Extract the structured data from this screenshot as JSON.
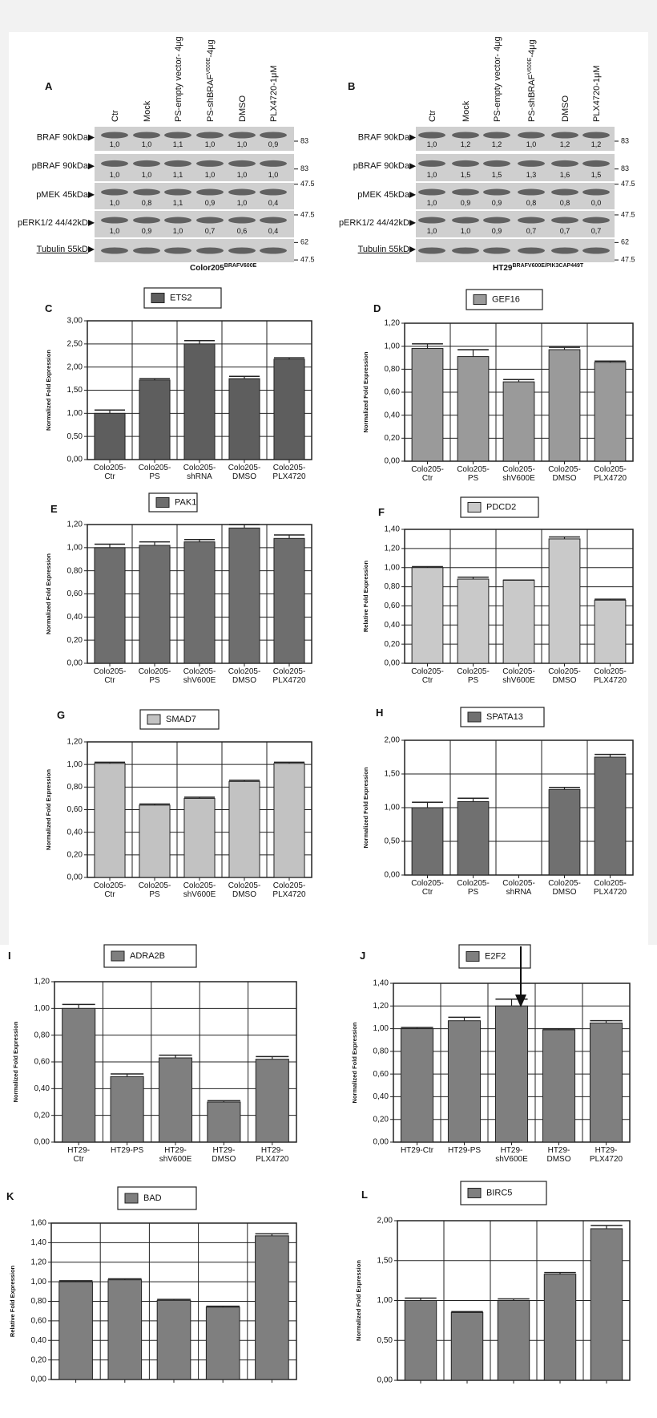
{
  "blots": [
    {
      "panel": "A",
      "lanes": [
        "Ctr",
        "Mock",
        "PS-empty vector- 4μg",
        {
          "text": "PS-shBRAF",
          "sup": "V600E",
          "tail": "-4μg"
        },
        "DMSO",
        "PLX4720-1μM"
      ],
      "rows": [
        {
          "label": "BRAF 90kDa",
          "values": [
            "1,0",
            "1,0",
            "1,1",
            "1,0",
            "1,0",
            "0,9"
          ],
          "markers": [
            "83"
          ]
        },
        {
          "label": "pBRAF 90kDa",
          "values": [
            "1,0",
            "1,0",
            "1,1",
            "1,0",
            "1,0",
            "1,0"
          ],
          "markers": [
            "83"
          ]
        },
        {
          "label": "pMEK 45kDa",
          "values": [
            "1,0",
            "0,8",
            "1,1",
            "0,9",
            "1,0",
            "0,4"
          ],
          "markers": [
            "47.5"
          ]
        },
        {
          "label": "pERK1/2 44/42kD",
          "values": [
            "1,0",
            "0,9",
            "1,0",
            "0,7",
            "0,6",
            "0,4"
          ],
          "markers": [
            "47.5"
          ]
        },
        {
          "label": "Tubulin 55kD",
          "values": [],
          "markers": [
            "62",
            "47.5"
          ]
        }
      ],
      "caption": "Color205",
      "caption_sup": "BRAFV600E"
    },
    {
      "panel": "B",
      "lanes": [
        "Ctr",
        "Mock",
        "PS-empty vector- 4μg",
        {
          "text": "PS-shBRAF",
          "sup": "V600E",
          "tail": "-4μg"
        },
        "DMSO",
        "PLX4720-1μM"
      ],
      "rows": [
        {
          "label": "BRAF 90kDa",
          "values": [
            "1,0",
            "1,2",
            "1,2",
            "1,0",
            "1,2",
            "1,2"
          ],
          "markers": [
            "83"
          ]
        },
        {
          "label": "pBRAF 90kDa",
          "values": [
            "1,0",
            "1,5",
            "1,5",
            "1,3",
            "1,6",
            "1,5"
          ],
          "markers": [
            "83"
          ]
        },
        {
          "label": "pMEK 45kDa",
          "values": [
            "1,0",
            "0,9",
            "0,9",
            "0,8",
            "0,8",
            "0,0"
          ],
          "markers": [
            "47.5"
          ]
        },
        {
          "label": "pERK1/2 44/42kD",
          "values": [
            "1,0",
            "1,0",
            "0,9",
            "0,7",
            "0,7",
            "0,7"
          ],
          "markers": [
            "47.5"
          ]
        },
        {
          "label": "Tubulin 55kD",
          "values": [],
          "markers": [
            "62",
            "47.5"
          ]
        }
      ],
      "caption": "HT29",
      "caption_sup": "BRAFV600E/PIK3CAP449T"
    }
  ],
  "chart_data": [
    {
      "type": "bar",
      "panel": "C",
      "ylabel": "Normalized Fold Expression",
      "categories": [
        "Colo205-\nCtr",
        "Colo205-\nPS",
        "Colo205-\nshRNA",
        "Colo205-\nDMSO",
        "Colo205-\nPLX4720"
      ],
      "ylim": [
        0,
        3
      ],
      "yticks": [
        {
          "value": 0,
          "label": "0,00"
        },
        {
          "value": 0.5,
          "label": "0,50"
        },
        {
          "value": 1,
          "label": "1,00"
        },
        {
          "value": 1.5,
          "label": "1,50"
        },
        {
          "value": 2,
          "label": "2,00"
        },
        {
          "value": 2.5,
          "label": "2,50"
        },
        {
          "value": 3,
          "label": "3,00"
        }
      ],
      "grid": true,
      "series": [
        {
          "name": "ETS2",
          "color": "#5e5e5e",
          "values": [
            1.0,
            1.72,
            2.5,
            1.75,
            2.17
          ],
          "errors": [
            0.07,
            0.03,
            0.07,
            0.05,
            0.03
          ]
        }
      ]
    },
    {
      "type": "bar",
      "panel": "D",
      "ylabel": "Normalized Fold Expression",
      "categories": [
        "Colo205-\nCtr",
        "Colo205-\nPS",
        "Colo205-\nshV600E",
        "Colo205-\nDMSO",
        "Colo205-\nPLX4720"
      ],
      "ylim": [
        0,
        1.2
      ],
      "yticks": [
        {
          "value": 0,
          "label": "0,00"
        },
        {
          "value": 0.2,
          "label": "0,20"
        },
        {
          "value": 0.4,
          "label": "0,40"
        },
        {
          "value": 0.6,
          "label": "0,60"
        },
        {
          "value": 0.8,
          "label": "0,80"
        },
        {
          "value": 1,
          "label": "1,00"
        },
        {
          "value": 1.2,
          "label": "1,20"
        }
      ],
      "grid": true,
      "series": [
        {
          "name": "GEF16",
          "color": "#9a9a9a",
          "values": [
            0.98,
            0.91,
            0.69,
            0.97,
            0.86
          ],
          "errors": [
            0.04,
            0.06,
            0.02,
            0.02,
            0.01
          ]
        }
      ]
    },
    {
      "type": "bar",
      "panel": "E",
      "ylabel": "Normalized Fold Expression",
      "categories": [
        "Colo205-\nCtr",
        "Colo205-\nPS",
        "Colo205-\nshV600E",
        "Colo205-\nDMSO",
        "Colo205-\nPLX4720"
      ],
      "ylim": [
        0,
        1.2
      ],
      "yticks": [
        {
          "value": 0,
          "label": "0,00"
        },
        {
          "value": 0.2,
          "label": "0,20"
        },
        {
          "value": 0.4,
          "label": "0,40"
        },
        {
          "value": 0.6,
          "label": "0,60"
        },
        {
          "value": 0.8,
          "label": "0,80"
        },
        {
          "value": 1,
          "label": "1,00"
        },
        {
          "value": 1.2,
          "label": "1,20"
        }
      ],
      "grid": true,
      "series": [
        {
          "name": "PAK1",
          "color": "#6e6e6e",
          "values": [
            1.0,
            1.02,
            1.05,
            1.17,
            1.08
          ],
          "errors": [
            0.03,
            0.03,
            0.02,
            0.03,
            0.03
          ]
        }
      ]
    },
    {
      "type": "bar",
      "panel": "F",
      "ylabel": "Relative Fold Expression",
      "categories": [
        "Colo205-\nCtr",
        "Colo205-\nPS",
        "Colo205-\nshV600E",
        "Colo205-\nDMSO",
        "Colo205-\nPLX4720"
      ],
      "ylim": [
        0,
        1.4
      ],
      "yticks": [
        {
          "value": 0,
          "label": "0,00"
        },
        {
          "value": 0.2,
          "label": "0,20"
        },
        {
          "value": 0.4,
          "label": "0,40"
        },
        {
          "value": 0.6,
          "label": "0,60"
        },
        {
          "value": 0.8,
          "label": "0,80"
        },
        {
          "value": 1,
          "label": "1,00"
        },
        {
          "value": 1.2,
          "label": "1,20"
        },
        {
          "value": 1.4,
          "label": "1,40"
        }
      ],
      "grid": true,
      "series": [
        {
          "name": "PDCD2",
          "color": "#c9c9c9",
          "values": [
            1.0,
            0.88,
            0.87,
            1.3,
            0.66
          ],
          "errors": [
            0.01,
            0.02,
            0,
            0.02,
            0.01
          ]
        }
      ]
    },
    {
      "type": "bar",
      "panel": "G",
      "ylabel": "Normalized Fold Expression",
      "categories": [
        "Colo205-\nCtr",
        "Colo205-\nPS",
        "Colo205-\nshV600E",
        "Colo205-\nDMSO",
        "Colo205-\nPLX4720"
      ],
      "ylim": [
        0,
        1.2
      ],
      "yticks": [
        {
          "value": 0,
          "label": "0,00"
        },
        {
          "value": 0.2,
          "label": "0,20"
        },
        {
          "value": 0.4,
          "label": "0,40"
        },
        {
          "value": 0.6,
          "label": "0,60"
        },
        {
          "value": 0.8,
          "label": "0,80"
        },
        {
          "value": 1,
          "label": "1,00"
        },
        {
          "value": 1.2,
          "label": "1,20"
        }
      ],
      "grid": true,
      "series": [
        {
          "name": "SMAD7",
          "color": "#c2c2c2",
          "values": [
            1.01,
            0.64,
            0.7,
            0.85,
            1.01
          ],
          "errors": [
            0.01,
            0.01,
            0.01,
            0.01,
            0.01
          ]
        }
      ]
    },
    {
      "type": "bar",
      "panel": "H",
      "ylabel": "Normalized Fold Expression",
      "categories": [
        "Colo205-\nCtr",
        "Colo205-\nPS",
        "Colo205-\nshRNA",
        "Colo205-\nDMSO",
        "Colo205-\nPLX4720"
      ],
      "ylim": [
        0,
        2
      ],
      "yticks": [
        {
          "value": 0,
          "label": "0,00"
        },
        {
          "value": 0.5,
          "label": "0,50"
        },
        {
          "value": 1,
          "label": "1,00"
        },
        {
          "value": 1.5,
          "label": "1,50"
        },
        {
          "value": 2,
          "label": "2,00"
        }
      ],
      "grid": true,
      "series": [
        {
          "name": "SPATA13",
          "color": "#707070",
          "values": [
            1.0,
            1.09,
            null,
            1.27,
            1.75
          ],
          "errors": [
            0.08,
            0.05,
            null,
            0.03,
            0.04
          ]
        }
      ]
    },
    {
      "type": "bar",
      "panel": "I",
      "ylabel": "Normalized Fold Expression",
      "categories": [
        "HT29-\nCtr",
        "HT29-PS",
        "HT29-\nshV600E",
        "HT29-\nDMSO",
        "HT29-\nPLX4720"
      ],
      "ylim": [
        0,
        1.2
      ],
      "yticks": [
        {
          "value": 0,
          "label": "0,00"
        },
        {
          "value": 0.2,
          "label": "0,20"
        },
        {
          "value": 0.4,
          "label": "0,40"
        },
        {
          "value": 0.6,
          "label": "0,60"
        },
        {
          "value": 0.8,
          "label": "0,80"
        },
        {
          "value": 1,
          "label": "1,00"
        },
        {
          "value": 1.2,
          "label": "1,20"
        }
      ],
      "grid": true,
      "series": [
        {
          "name": "ADRA2B",
          "color": "#7f7f7f",
          "values": [
            1.0,
            0.49,
            0.63,
            0.3,
            0.62
          ],
          "errors": [
            0.03,
            0.02,
            0.02,
            0.01,
            0.02
          ]
        }
      ]
    },
    {
      "type": "bar",
      "panel": "J",
      "ylabel": "Normalized Fold Expression",
      "categories": [
        "HT29-Ctr",
        "HT29-PS",
        "HT29-\nshV600E",
        "HT29-\nDMSO",
        "HT29-\nPLX4720"
      ],
      "ylim": [
        0,
        1.4
      ],
      "yticks": [
        {
          "value": 0,
          "label": "0,00"
        },
        {
          "value": 0.2,
          "label": "0,20"
        },
        {
          "value": 0.4,
          "label": "0,40"
        },
        {
          "value": 0.6,
          "label": "0,60"
        },
        {
          "value": 0.8,
          "label": "0,80"
        },
        {
          "value": 1,
          "label": "1,00"
        },
        {
          "value": 1.2,
          "label": "1,20"
        },
        {
          "value": 1.4,
          "label": "1,40"
        }
      ],
      "grid": true,
      "series": [
        {
          "name": "E2F2",
          "color": "#7f7f7f",
          "values": [
            1.0,
            1.07,
            1.2,
            0.99,
            1.05
          ],
          "errors": [
            0.01,
            0.03,
            0.06,
            0.01,
            0.02
          ]
        }
      ]
    },
    {
      "type": "bar",
      "panel": "K",
      "ylabel": "Relative Fold Expression",
      "categories": [
        null,
        null,
        null,
        null,
        null
      ],
      "ylim": [
        0,
        1.6
      ],
      "yticks": [
        {
          "value": 0,
          "label": "0,00"
        },
        {
          "value": 0.2,
          "label": "0,20"
        },
        {
          "value": 0.4,
          "label": "0,40"
        },
        {
          "value": 0.6,
          "label": "0,60"
        },
        {
          "value": 0.8,
          "label": "0,80"
        },
        {
          "value": 1,
          "label": "1,00"
        },
        {
          "value": 1.2,
          "label": "1,20"
        },
        {
          "value": 1.4,
          "label": "1,40"
        },
        {
          "value": 1.6,
          "label": "1,60"
        }
      ],
      "grid": true,
      "series": [
        {
          "name": "BAD",
          "color": "#7f7f7f",
          "values": [
            1.0,
            1.02,
            0.81,
            0.74,
            1.47
          ],
          "errors": [
            0.01,
            0.01,
            0.01,
            0.01,
            0.02
          ]
        }
      ]
    },
    {
      "type": "bar",
      "panel": "L",
      "ylabel": "Normalized Fold Expression",
      "categories": [
        null,
        null,
        null,
        null,
        null
      ],
      "ylim": [
        0,
        2
      ],
      "yticks": [
        {
          "value": 0,
          "label": "0,00"
        },
        {
          "value": 0.5,
          "label": "0,50"
        },
        {
          "value": 1,
          "label": "1,00"
        },
        {
          "value": 1.5,
          "label": "1,50"
        },
        {
          "value": 2,
          "label": "2,00"
        }
      ],
      "grid": true,
      "series": [
        {
          "name": "BIRC5",
          "color": "#7f7f7f",
          "values": [
            1.0,
            0.85,
            1.0,
            1.33,
            1.9
          ],
          "errors": [
            0.03,
            0.01,
            0.02,
            0.02,
            0.04
          ]
        }
      ]
    }
  ]
}
